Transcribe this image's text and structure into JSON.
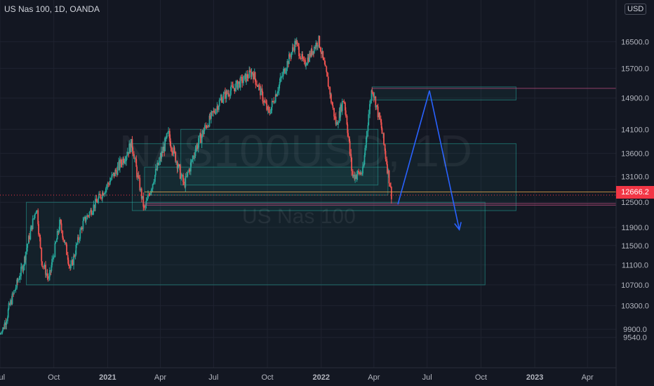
{
  "header": {
    "title": "US Nas 100, 1D, OANDA",
    "currency": "USD"
  },
  "watermark": {
    "symbol": "NAS100USD, 1D",
    "name": "US Nas 100"
  },
  "last_price": "12666.2",
  "colors": {
    "background": "#131722",
    "up": "#26a69a",
    "down": "#ef5350",
    "zone": "#26a69a",
    "projection": "#2962ff",
    "last_price": "#f23645"
  },
  "chart_data": {
    "type": "candlestick",
    "title": "US Nas 100, 1D, OANDA",
    "y_ticks": [
      9540,
      9900,
      10300,
      10700,
      11100,
      11500,
      11900,
      12500,
      13100,
      13600,
      14100,
      14900,
      15700,
      16500
    ],
    "y_tick_labels": [
      "9540.0",
      "9900.0",
      "10300.0",
      "10700.0",
      "11100.0",
      "11500.0",
      "11900.0",
      "12500.0",
      "13100.0",
      "13600.0",
      "14100.0",
      "14900.0",
      "15700.0",
      "16500.0"
    ],
    "ylim": [
      9300,
      17200
    ],
    "x_ticks": [
      "Jul",
      "Oct",
      "2021",
      "Apr",
      "Jul",
      "Oct",
      "2022",
      "Apr",
      "Jul",
      "Oct",
      "2023",
      "Apr"
    ],
    "x_tick_dates": [
      "2020-07-01",
      "2020-10-01",
      "2021-01-01",
      "2021-04-01",
      "2021-07-01",
      "2021-10-01",
      "2022-01-01",
      "2022-04-01",
      "2022-07-01",
      "2022-10-01",
      "2023-01-01",
      "2023-04-01"
    ],
    "xlim": [
      "2020-07-01",
      "2023-05-20"
    ],
    "price_path": [
      {
        "date": "2020-07-01",
        "close": 9700
      },
      {
        "date": "2020-08-10",
        "close": 11100
      },
      {
        "date": "2020-09-02",
        "close": 12400
      },
      {
        "date": "2020-09-10",
        "close": 11200
      },
      {
        "date": "2020-09-23",
        "close": 10800
      },
      {
        "date": "2020-10-12",
        "close": 12000
      },
      {
        "date": "2020-10-30",
        "close": 11000
      },
      {
        "date": "2020-11-20",
        "close": 12000
      },
      {
        "date": "2020-12-31",
        "close": 12880
      },
      {
        "date": "2021-02-12",
        "close": 13800
      },
      {
        "date": "2021-03-05",
        "close": 12300
      },
      {
        "date": "2021-03-20",
        "close": 13000
      },
      {
        "date": "2021-04-15",
        "close": 14000
      },
      {
        "date": "2021-05-12",
        "close": 12900
      },
      {
        "date": "2021-06-01",
        "close": 13700
      },
      {
        "date": "2021-07-15",
        "close": 14900
      },
      {
        "date": "2021-09-06",
        "close": 15600
      },
      {
        "date": "2021-10-04",
        "close": 14500
      },
      {
        "date": "2021-11-19",
        "close": 16500
      },
      {
        "date": "2021-12-03",
        "close": 15800
      },
      {
        "date": "2021-12-28",
        "close": 16550
      },
      {
        "date": "2022-01-27",
        "close": 14200
      },
      {
        "date": "2022-02-09",
        "close": 14900
      },
      {
        "date": "2022-02-24",
        "close": 13100
      },
      {
        "date": "2022-03-14",
        "close": 13200
      },
      {
        "date": "2022-03-29",
        "close": 15200
      },
      {
        "date": "2022-04-15",
        "close": 14100
      },
      {
        "date": "2022-05-02",
        "close": 12666.2
      }
    ],
    "zones": [
      {
        "x0": "2020-08-15",
        "x1": "2022-10-08",
        "y0": 10700,
        "y1": 12500
      },
      {
        "x0": "2021-02-12",
        "x1": "2022-11-30",
        "y0": 12300,
        "y1": 13800
      },
      {
        "x0": "2021-03-05",
        "x1": "2022-04-25",
        "y0": 12666,
        "y1": 13300
      },
      {
        "x0": "2021-05-06",
        "x1": "2022-04-08",
        "y0": 12900,
        "y1": 14100
      },
      {
        "x0": "2022-03-29",
        "x1": "2022-11-30",
        "y0": 14850,
        "y1": 15200
      }
    ],
    "horizontal_lines": [
      12740,
      12470,
      12430,
      15160
    ],
    "projection": [
      {
        "date": "2022-05-12",
        "price": 12450
      },
      {
        "date": "2022-07-05",
        "price": 15100
      },
      {
        "date": "2022-08-25",
        "price": 11850
      }
    ]
  }
}
